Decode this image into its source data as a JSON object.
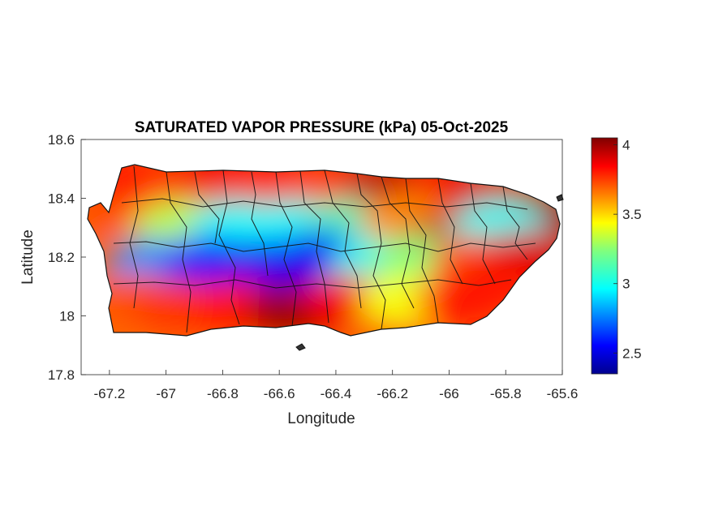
{
  "chart_data": {
    "type": "heatmap",
    "title": "SATURATED VAPOR PRESSURE (kPa) 05-Oct-2025",
    "xlabel": "Longitude",
    "ylabel": "Latitude",
    "xlim": [
      -67.3,
      -65.6
    ],
    "ylim": [
      17.8,
      18.6
    ],
    "x_ticks": [
      -67.2,
      -67,
      -66.8,
      -66.6,
      -66.4,
      -66.2,
      -66,
      -65.8,
      -65.6
    ],
    "x_tick_labels": [
      "-67.2",
      "-67",
      "-66.8",
      "-66.6",
      "-66.4",
      "-66.2",
      "-66",
      "-65.8",
      "-65.6"
    ],
    "y_ticks": [
      17.8,
      18,
      18.2,
      18.4,
      18.6
    ],
    "y_tick_labels": [
      "17.8",
      "18",
      "18.2",
      "18.4",
      "18.6"
    ],
    "colorbar": {
      "colormap": "jet",
      "range": [
        2.35,
        4.05
      ],
      "ticks": [
        2.5,
        3,
        3.5,
        4
      ],
      "tick_labels": [
        "2.5",
        "3",
        "3.5",
        "4"
      ]
    },
    "grid": false,
    "cells": [
      {
        "lon": -67.22,
        "lat": 18.36,
        "value": 3.7
      },
      {
        "lon": -67.1,
        "lat": 18.47,
        "value": 3.8
      },
      {
        "lon": -66.95,
        "lat": 18.46,
        "value": 3.75
      },
      {
        "lon": -66.8,
        "lat": 18.46,
        "value": 3.85
      },
      {
        "lon": -66.6,
        "lat": 18.46,
        "value": 3.8
      },
      {
        "lon": -66.4,
        "lat": 18.46,
        "value": 3.75
      },
      {
        "lon": -66.2,
        "lat": 18.44,
        "value": 3.95
      },
      {
        "lon": -66.0,
        "lat": 18.43,
        "value": 3.85
      },
      {
        "lon": -65.85,
        "lat": 18.39,
        "value": 3.9
      },
      {
        "lon": -65.68,
        "lat": 18.33,
        "value": 4.0
      },
      {
        "lon": -66.95,
        "lat": 18.3,
        "value": 3.3
      },
      {
        "lon": -66.75,
        "lat": 18.3,
        "value": 3.0
      },
      {
        "lon": -66.55,
        "lat": 18.3,
        "value": 3.0
      },
      {
        "lon": -66.35,
        "lat": 18.3,
        "value": 3.1
      },
      {
        "lon": -66.15,
        "lat": 18.32,
        "value": 3.6
      },
      {
        "lon": -66.0,
        "lat": 18.25,
        "value": 3.95
      },
      {
        "lon": -65.82,
        "lat": 18.3,
        "value": 3.0
      },
      {
        "lon": -67.05,
        "lat": 18.17,
        "value": 2.8
      },
      {
        "lon": -66.85,
        "lat": 18.18,
        "value": 2.6
      },
      {
        "lon": -66.65,
        "lat": 18.17,
        "value": 2.55
      },
      {
        "lon": -66.45,
        "lat": 18.2,
        "value": 2.55
      },
      {
        "lon": -66.25,
        "lat": 18.17,
        "value": 3.0
      },
      {
        "lon": -66.1,
        "lat": 18.18,
        "value": 3.2
      },
      {
        "lon": -65.9,
        "lat": 18.18,
        "value": 3.7
      },
      {
        "lon": -65.72,
        "lat": 18.2,
        "value": 3.9
      },
      {
        "lon": -67.12,
        "lat": 18.05,
        "value": 3.7
      },
      {
        "lon": -66.95,
        "lat": 18.03,
        "value": 3.75
      },
      {
        "lon": -66.75,
        "lat": 18.03,
        "value": 3.8
      },
      {
        "lon": -66.55,
        "lat": 18.02,
        "value": 4.0
      },
      {
        "lon": -66.35,
        "lat": 18.05,
        "value": 3.85
      },
      {
        "lon": -66.15,
        "lat": 18.05,
        "value": 3.4
      },
      {
        "lon": -65.95,
        "lat": 18.05,
        "value": 3.8
      },
      {
        "lon": -65.85,
        "lat": 18.1,
        "value": 3.8
      }
    ]
  }
}
